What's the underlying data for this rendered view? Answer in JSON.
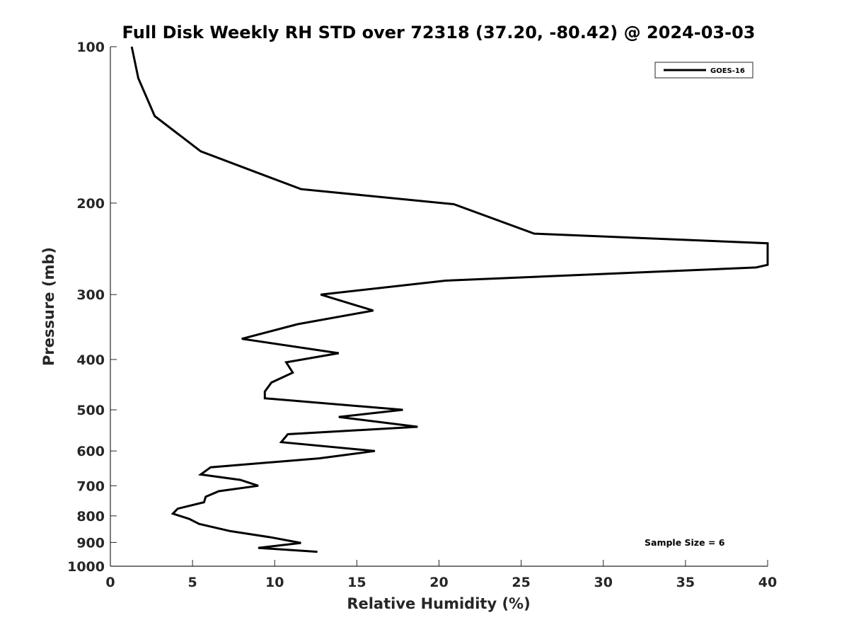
{
  "chart_data": {
    "type": "line",
    "title": "Full Disk Weekly RH STD over 72318 (37.20, -80.42) @ 2024-03-03",
    "xlabel": "Relative Humidity (%)",
    "ylabel": "Pressure (mb)",
    "xlim": [
      0,
      40
    ],
    "ylim": [
      1000,
      100
    ],
    "yscale": "log",
    "xticks": [
      0,
      5,
      10,
      15,
      20,
      25,
      30,
      35,
      40
    ],
    "yticks": [
      100,
      200,
      300,
      400,
      500,
      600,
      700,
      800,
      900,
      1000
    ],
    "legend": {
      "position": "top-right",
      "entries": [
        "GOES-16"
      ]
    },
    "annotation": "Sample Size = 6",
    "series": [
      {
        "name": "GOES-16",
        "color": "#000000",
        "x": [
          1.3,
          1.7,
          2.7,
          5.5,
          11.6,
          20.9,
          25.8,
          40.0,
          40.0,
          39.3,
          20.4,
          12.8,
          16.0,
          11.4,
          8.0,
          13.9,
          10.7,
          11.1,
          9.8,
          9.4,
          9.4,
          17.8,
          13.9,
          18.7,
          10.8,
          10.4,
          16.1,
          12.7,
          6.1,
          5.5,
          7.9,
          9.0,
          6.6,
          5.8,
          5.7,
          4.1,
          3.8,
          4.8,
          5.4,
          7.3,
          9.8,
          11.6,
          9.0,
          12.6
        ],
        "y": [
          100,
          115,
          136,
          159,
          188,
          201,
          229,
          239,
          263,
          266,
          282,
          300,
          322,
          342,
          365,
          389,
          405,
          424,
          443,
          461,
          475,
          500,
          516,
          539,
          557,
          577,
          600,
          620,
          645,
          666,
          682,
          700,
          717,
          735,
          753,
          775,
          792,
          811,
          829,
          856,
          880,
          902,
          922,
          938
        ]
      }
    ]
  }
}
